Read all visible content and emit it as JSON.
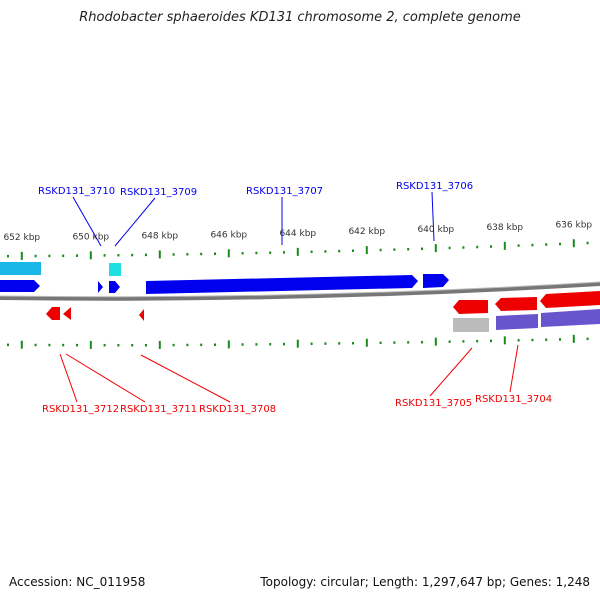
{
  "title": "Rhodobacter sphaeroides KD131 chromosome 2, complete genome",
  "accession": "Accession: NC_011958",
  "summary": "Topology: circular; Length: 1,297,647 bp; Genes: 1,248",
  "kbp_labels": [
    "652 kbp",
    "650 kbp",
    "648 kbp",
    "646 kbp",
    "644 kbp",
    "642 kbp",
    "640 kbp",
    "638 kbp",
    "636 kbp"
  ],
  "forward_genes": [
    "RSKD131_3710",
    "RSKD131_3709",
    "RSKD131_3707",
    "RSKD131_3706"
  ],
  "reverse_genes": [
    "RSKD131_3712",
    "RSKD131_3711",
    "RSKD131_3708",
    "RSKD131_3705",
    "RSKD131_3704"
  ],
  "colors": {
    "forward": "#0000ee",
    "reverse": "#ee0000",
    "tick": "#1a8a1a",
    "backbone": "#777777"
  }
}
